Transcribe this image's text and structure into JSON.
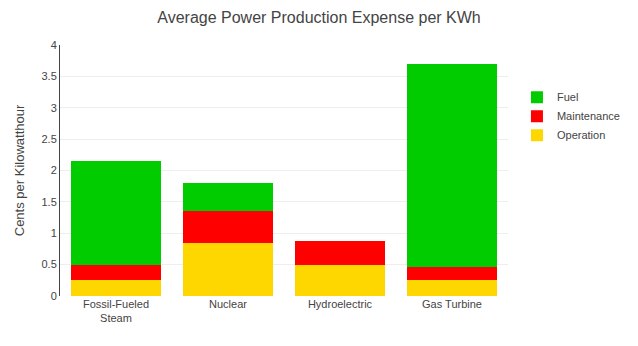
{
  "chart_data": {
    "type": "bar",
    "stacked": true,
    "title": "Average Power Production Expense per KWh",
    "ylabel": "Cents per Kilowatthour",
    "categories": [
      "Fossil-Fueled\nSteam",
      "Nuclear",
      "Hydroelectric",
      "Gas Turbine"
    ],
    "series": [
      {
        "name": "Operation",
        "color": "#FFD700",
        "values": [
          0.25,
          0.85,
          0.5,
          0.25
        ]
      },
      {
        "name": "Maintenance",
        "color": "#FF0000",
        "values": [
          0.25,
          0.5,
          0.38,
          0.22
        ]
      },
      {
        "name": "Fuel",
        "color": "#00CC00",
        "values": [
          1.65,
          0.45,
          0.0,
          3.23
        ]
      }
    ],
    "ylim": [
      0,
      4
    ],
    "yticks": [
      0,
      0.5,
      1.0,
      1.5,
      2.0,
      2.5,
      3.0,
      3.5,
      4.0
    ],
    "grid": true,
    "legend": "right"
  }
}
